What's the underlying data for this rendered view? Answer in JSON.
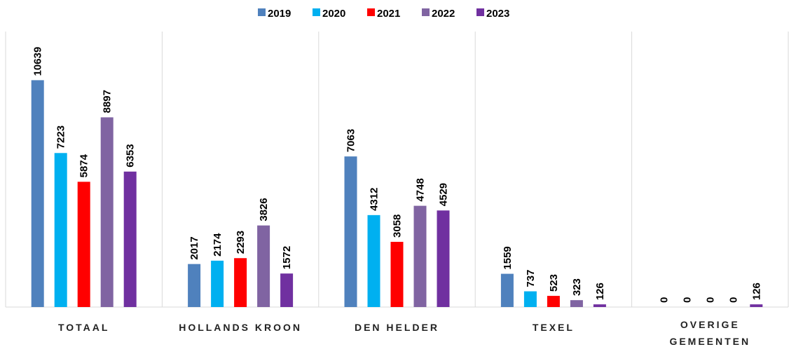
{
  "chart_data": {
    "type": "bar",
    "categories": [
      "TOTAAL",
      "HOLLANDS KROON",
      "DEN HELDER",
      "TEXEL",
      "OVERIGE GEMEENTEN"
    ],
    "series": [
      {
        "name": "2019",
        "color": "#4f81bd",
        "values": [
          10639,
          2017,
          7063,
          1559,
          0
        ]
      },
      {
        "name": "2020",
        "color": "#00b0f0",
        "values": [
          7223,
          2174,
          4312,
          737,
          0
        ]
      },
      {
        "name": "2021",
        "color": "#ff0000",
        "values": [
          5874,
          2293,
          3058,
          523,
          0
        ]
      },
      {
        "name": "2022",
        "color": "#8064a2",
        "values": [
          8897,
          3826,
          4748,
          323,
          0
        ]
      },
      {
        "name": "2023",
        "color": "#7030a0",
        "values": [
          6353,
          1572,
          4529,
          126,
          126
        ]
      }
    ],
    "ylim": [
      0,
      12000
    ],
    "legend": "top"
  }
}
